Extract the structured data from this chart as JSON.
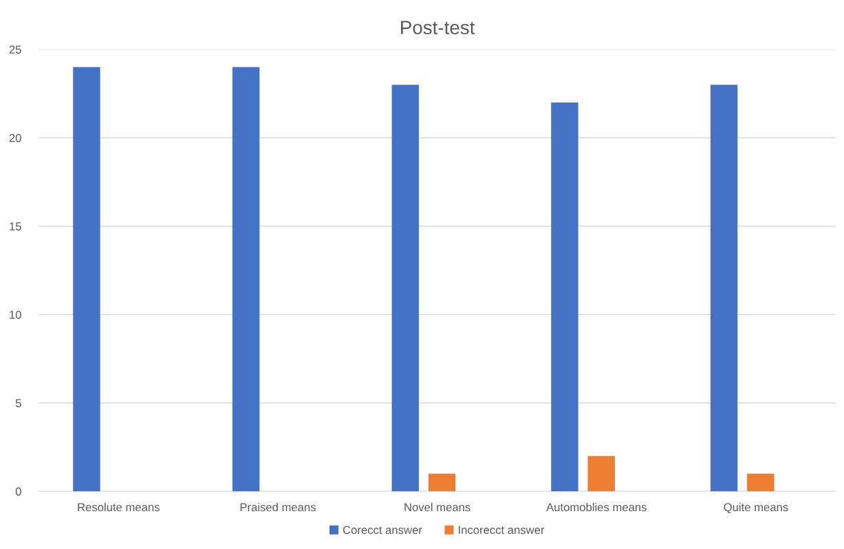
{
  "chart_data": {
    "type": "bar",
    "title": "Post-test",
    "categories": [
      "Resolute means",
      "Praised means",
      "Novel means",
      "Automoblies means",
      "Quite means"
    ],
    "series": [
      {
        "name": "Corecct answer",
        "color": "#4472c4",
        "values": [
          24,
          24,
          23,
          22,
          23
        ]
      },
      {
        "name": "Incorecct answer",
        "color": "#ed7d31",
        "values": [
          0,
          0,
          1,
          2,
          1
        ]
      }
    ],
    "ylim": [
      0,
      25
    ],
    "yticks": [
      0,
      5,
      10,
      15,
      20,
      25
    ],
    "grid": "y",
    "legend": "bottom"
  }
}
